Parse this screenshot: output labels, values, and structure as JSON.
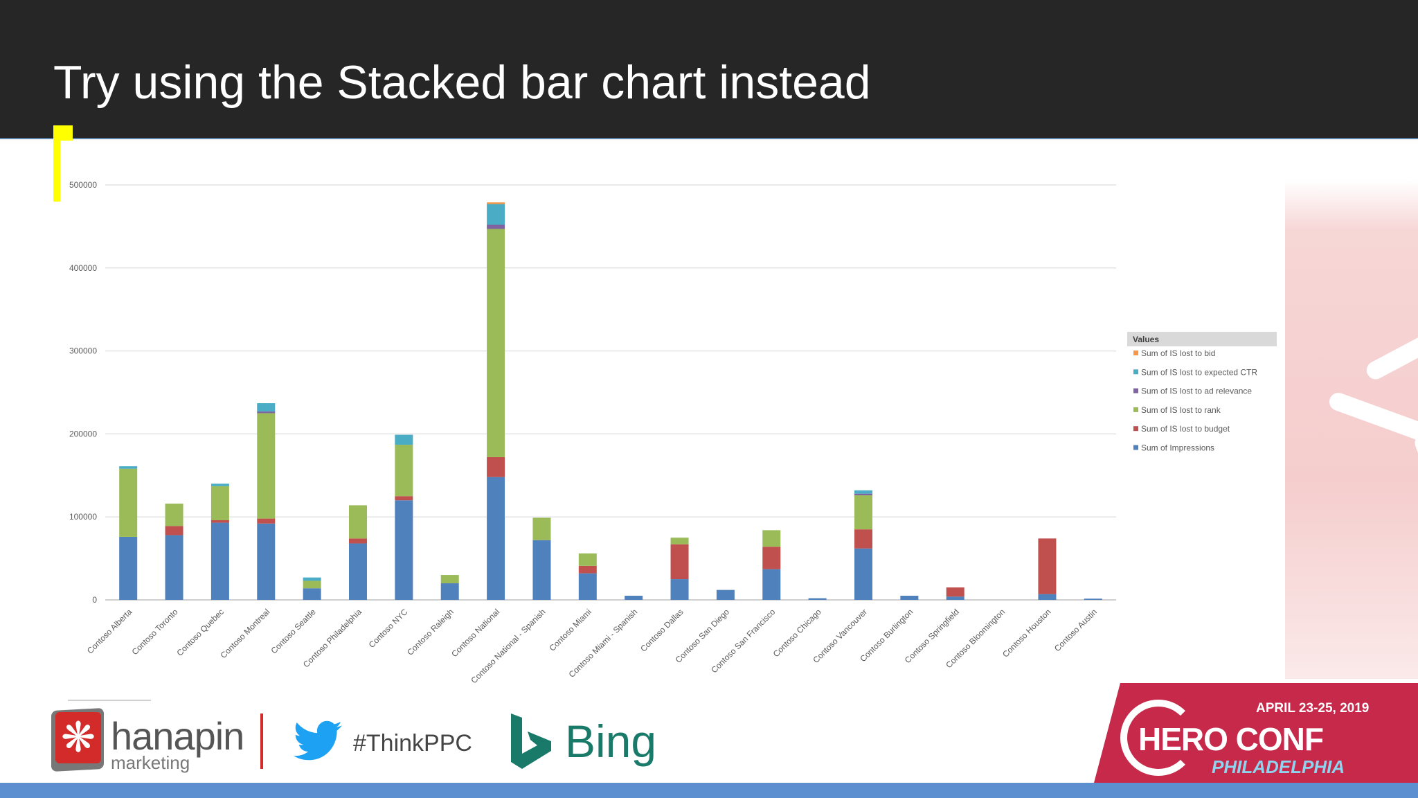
{
  "slide": {
    "title": "Try using the Stacked bar chart instead"
  },
  "footer": {
    "hanapin_name": "hanapin",
    "hanapin_sub": "marketing",
    "hashtag": "#ThinkPPC",
    "bing": "Bing",
    "hero_date": "APRIL 23-25, 2019",
    "hero_name": "HERO CONF",
    "hero_city": "PHILADELPHIA",
    "icons": [
      "hanapin-logo-icon",
      "twitter-bird-icon",
      "bing-icon"
    ]
  },
  "colors": {
    "header_bg": "#262626",
    "accent_yellow": "#ffff00",
    "hero_red": "#c7294a",
    "bottom_bar": "#5b8fd0"
  },
  "chart_data": {
    "type": "bar",
    "stacked": true,
    "ylim": [
      0,
      500000
    ],
    "yticks": [
      0,
      100000,
      200000,
      300000,
      400000,
      500000
    ],
    "ytick_labels": [
      "0",
      "100000",
      "200000",
      "300000",
      "400000",
      "500000"
    ],
    "grid": true,
    "legend": {
      "title": "Values",
      "placement": "right",
      "entries": [
        {
          "name": "Sum of IS lost to bid",
          "color": "#f79646"
        },
        {
          "name": "Sum of IS lost to expected CTR",
          "color": "#4bacc6"
        },
        {
          "name": "Sum of IS lost to ad relevance",
          "color": "#8064a2"
        },
        {
          "name": "Sum of IS lost to rank",
          "color": "#9bbb59"
        },
        {
          "name": "Sum of IS lost to budget",
          "color": "#c0504d"
        },
        {
          "name": "Sum of Impressions",
          "color": "#4f81bd"
        }
      ]
    },
    "categories": [
      "Contoso Alberta",
      "Contoso Toronto",
      "Contoso Quebec",
      "Contoso Montreal",
      "Contoso Seattle",
      "Contoso Philadelphia",
      "Contoso NYC",
      "Contoso Raleigh",
      "Contoso National",
      "Contoso National - Spanish",
      "Contoso Miami",
      "Contoso Miami - Spanish",
      "Contoso Dallas",
      "Contoso San Diego",
      "Contoso San Francisco",
      "Contoso Chicago",
      "Contoso Vancouver",
      "Contoso Burlington",
      "Contoso Springfield",
      "Contoso Bloomington",
      "Contoso Houston",
      "Contoso Austin"
    ],
    "series": [
      {
        "name": "Sum of Impressions",
        "color": "#4f81bd",
        "values": [
          76000,
          78000,
          93000,
          92000,
          14000,
          68000,
          120000,
          20000,
          148000,
          72000,
          32000,
          5000,
          25000,
          12000,
          37000,
          2000,
          62000,
          5000,
          4000,
          0,
          7000,
          1500
        ]
      },
      {
        "name": "Sum of IS lost to budget",
        "color": "#c0504d",
        "values": [
          0,
          11000,
          3000,
          6000,
          0,
          6000,
          5000,
          0,
          24000,
          0,
          9000,
          0,
          42000,
          0,
          27000,
          0,
          23000,
          0,
          11000,
          0,
          67000,
          0
        ]
      },
      {
        "name": "Sum of IS lost to rank",
        "color": "#9bbb59",
        "values": [
          82000,
          27000,
          41000,
          127000,
          9000,
          40000,
          62000,
          10000,
          275000,
          27000,
          15000,
          0,
          8000,
          0,
          20000,
          0,
          41000,
          0,
          0,
          0,
          0,
          0
        ]
      },
      {
        "name": "Sum of IS lost to ad relevance",
        "color": "#8064a2",
        "values": [
          0,
          0,
          0,
          2000,
          0,
          0,
          0,
          0,
          5000,
          0,
          0,
          0,
          0,
          0,
          0,
          0,
          2000,
          0,
          0,
          0,
          0,
          0
        ]
      },
      {
        "name": "Sum of IS lost to expected CTR",
        "color": "#4bacc6",
        "values": [
          3000,
          0,
          3000,
          10000,
          4000,
          0,
          12000,
          0,
          25000,
          0,
          0,
          0,
          0,
          0,
          0,
          0,
          4000,
          0,
          0,
          0,
          0,
          0
        ]
      },
      {
        "name": "Sum of IS lost to bid",
        "color": "#f79646",
        "values": [
          0,
          0,
          0,
          0,
          0,
          0,
          0,
          0,
          2000,
          0,
          0,
          0,
          0,
          0,
          0,
          0,
          0,
          0,
          0,
          0,
          0,
          0
        ]
      }
    ]
  }
}
